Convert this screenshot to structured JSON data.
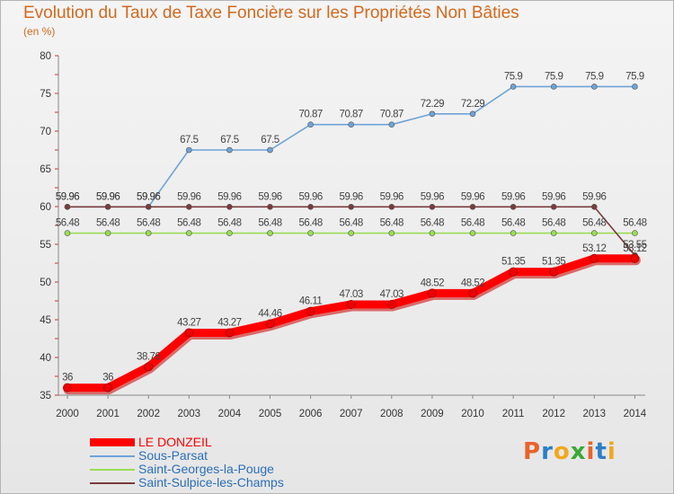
{
  "header": {
    "title": "Evolution du Taux de Taxe Foncière sur les Propriétés Non Bâties",
    "subtitle": "(en %)"
  },
  "logo": {
    "text": "Proxiti",
    "colors": [
      "#e8632b",
      "#2b7fc9",
      "#f0a81c",
      "#3aa935",
      "#e8632b",
      "#2b7fc9",
      "#f0a81c"
    ]
  },
  "chart_data": {
    "type": "line",
    "title": "Evolution du Taux de Taxe Foncière sur les Propriétés Non Bâties",
    "ylabel": "(en %)",
    "xlabel": "",
    "ylim": [
      35,
      80
    ],
    "yticks": [
      35,
      40,
      45,
      50,
      55,
      60,
      65,
      70,
      75,
      80
    ],
    "grid": false,
    "legend_position": "bottom-left",
    "categories": [
      "2000",
      "2001",
      "2002",
      "2003",
      "2004",
      "2005",
      "2006",
      "2007",
      "2008",
      "2009",
      "2010",
      "2011",
      "2012",
      "2013",
      "2014"
    ],
    "series": [
      {
        "name": "LE DONZEIL",
        "color": "#ff0000",
        "bold": true,
        "values": [
          36,
          36,
          38.76,
          43.27,
          43.27,
          44.46,
          46.11,
          47.03,
          47.03,
          48.52,
          48.52,
          51.35,
          51.35,
          53.12,
          53.12
        ],
        "labels": [
          "36",
          "36",
          "38.76",
          "43.27",
          "43.27",
          "44.46",
          "46.11",
          "47.03",
          "47.03",
          "48.52",
          "48.52",
          "51.35",
          "51.35",
          "53.12",
          "53.12"
        ]
      },
      {
        "name": "Sous-Parsat",
        "color": "#6fa3d8",
        "values": [
          59.96,
          59.96,
          59.96,
          67.5,
          67.5,
          67.5,
          70.87,
          70.87,
          70.87,
          72.29,
          72.29,
          75.9,
          75.9,
          75.9,
          75.9
        ],
        "labels": [
          "59.96",
          "59.96",
          "59.96",
          "67.5",
          "67.5",
          "67.5",
          "70.87",
          "70.87",
          "70.87",
          "72.29",
          "72.29",
          "75.9",
          "75.9",
          "75.9",
          "75.9"
        ]
      },
      {
        "name": "Saint-Georges-la-Pouge",
        "color": "#99dd55",
        "values": [
          56.48,
          56.48,
          56.48,
          56.48,
          56.48,
          56.48,
          56.48,
          56.48,
          56.48,
          56.48,
          56.48,
          56.48,
          56.48,
          56.48,
          56.48
        ],
        "labels": [
          "56.48",
          "56.48",
          "56.48",
          "56.48",
          "56.48",
          "56.48",
          "56.48",
          "56.48",
          "56.48",
          "56.48",
          "56.48",
          "56.48",
          "56.48",
          "56.48",
          "56.48"
        ]
      },
      {
        "name": "Saint-Sulpice-les-Champs",
        "color": "#7a3b3b",
        "values": [
          59.96,
          59.96,
          59.96,
          59.96,
          59.96,
          59.96,
          59.96,
          59.96,
          59.96,
          59.96,
          59.96,
          59.96,
          59.96,
          59.96,
          53.55
        ],
        "labels": [
          "59.96",
          "59.96",
          "59.96",
          "59.96",
          "59.96",
          "59.96",
          "59.96",
          "59.96",
          "59.96",
          "59.96",
          "59.96",
          "59.96",
          "59.96",
          "59.96",
          "53.55"
        ]
      }
    ]
  }
}
